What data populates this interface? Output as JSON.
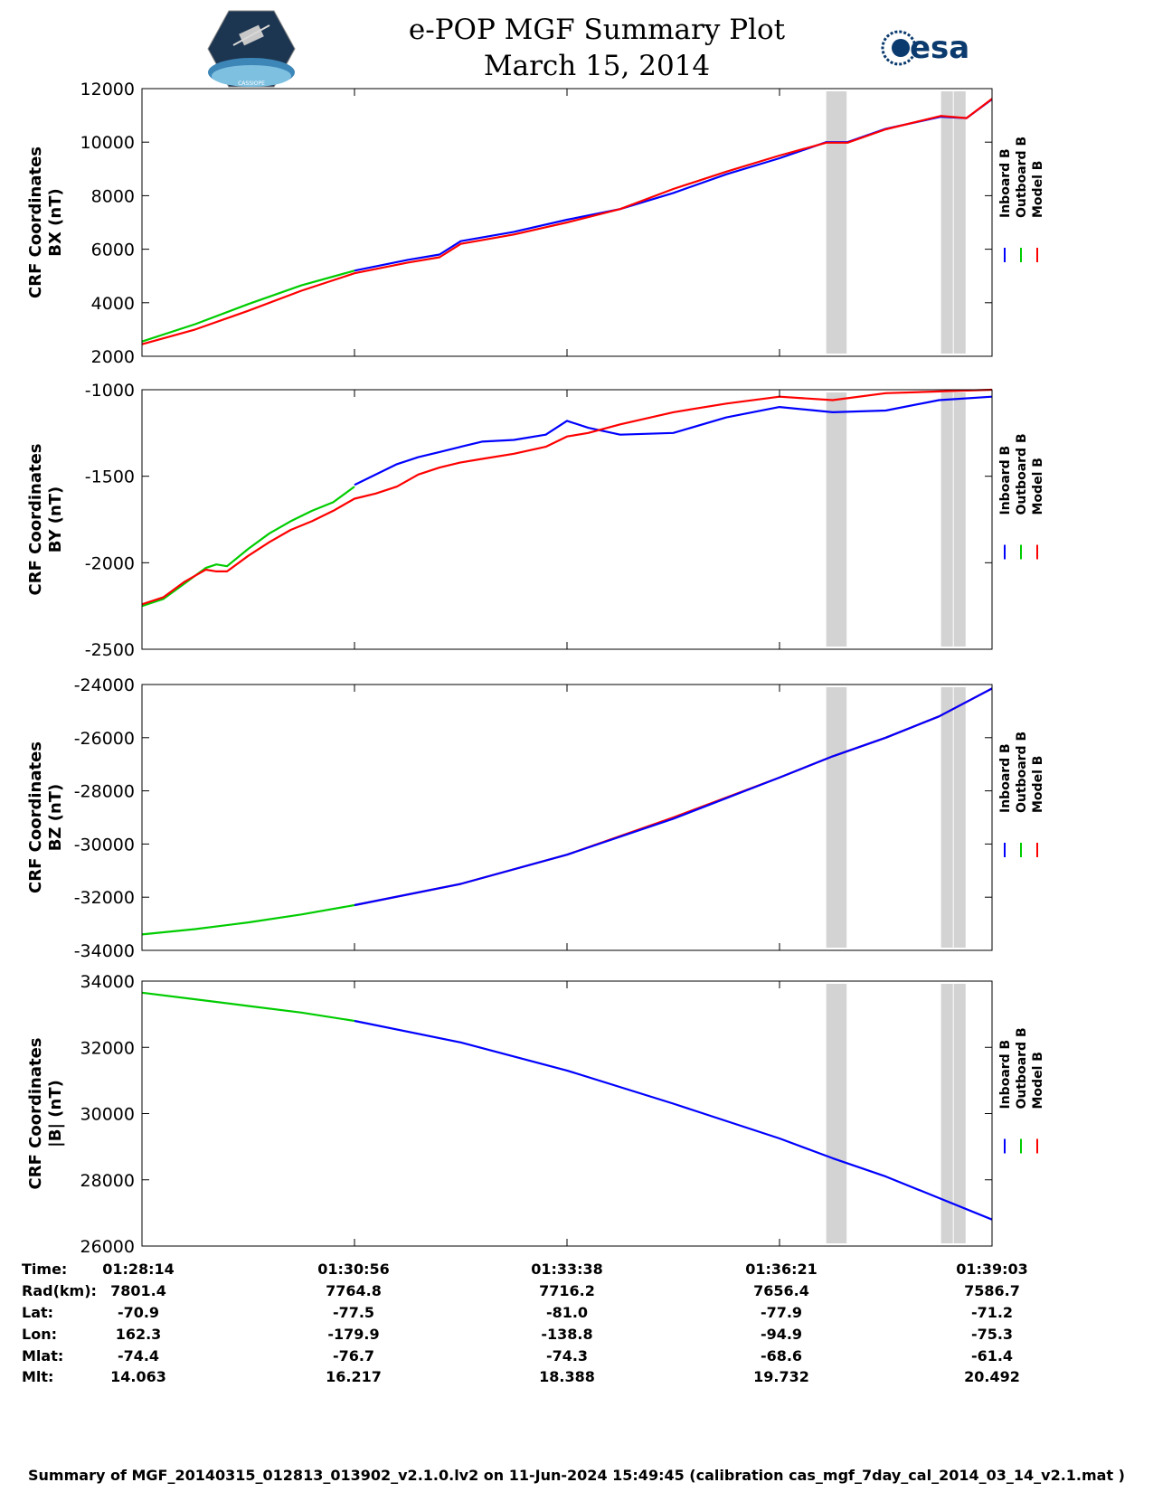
{
  "title": {
    "line1": "e-POP MGF Summary Plot",
    "line2": "March 15, 2014"
  },
  "logos": {
    "left_text": "CASSIOPE",
    "right_text": "esa"
  },
  "legend": {
    "labels": [
      "Inboard B",
      "Outboard B",
      "Model B"
    ],
    "colors": [
      "#0000ff",
      "#00cc00",
      "#ff0000"
    ]
  },
  "chart_data": [
    {
      "type": "line",
      "ylabel_line1": "CRF Coordinates",
      "ylabel_line2": "BX (nT)",
      "ylim": [
        2000,
        12000
      ],
      "yticks": [
        2000,
        4000,
        6000,
        8000,
        10000,
        12000
      ],
      "xlim": [
        0,
        4
      ],
      "xticks": [
        0,
        1,
        2,
        3,
        4
      ],
      "shaded_intervals": [
        [
          3.22,
          3.32
        ],
        [
          3.76,
          3.82
        ],
        [
          3.82,
          3.88
        ]
      ],
      "series": [
        {
          "name": "Outboard B",
          "color": "#00cc00",
          "x": [
            0,
            0.25,
            0.5,
            0.75,
            1.0
          ],
          "y": [
            2550,
            3200,
            3950,
            4650,
            5200
          ]
        },
        {
          "name": "Inboard B",
          "color": "#0000ff",
          "x": [
            1.0,
            1.25,
            1.4,
            1.5,
            1.75,
            2.0,
            2.25,
            2.5,
            2.75,
            3.0,
            3.22,
            3.32,
            3.5,
            3.76,
            3.88,
            4.0
          ],
          "y": [
            5200,
            5600,
            5800,
            6300,
            6650,
            7100,
            7500,
            8100,
            8800,
            9400,
            10000,
            10000,
            10500,
            10950,
            10900,
            11600
          ]
        },
        {
          "name": "Model B",
          "color": "#ff0000",
          "x": [
            0,
            0.25,
            0.5,
            0.75,
            1.0,
            1.25,
            1.4,
            1.5,
            1.75,
            2.0,
            2.25,
            2.5,
            2.75,
            3.0,
            3.22,
            3.32,
            3.5,
            3.76,
            3.88,
            4.0
          ],
          "y": [
            2450,
            3000,
            3700,
            4450,
            5100,
            5500,
            5700,
            6200,
            6550,
            7000,
            7500,
            8250,
            8900,
            9500,
            9980,
            9980,
            10480,
            10980,
            10900,
            11620
          ]
        }
      ]
    },
    {
      "type": "line",
      "ylabel_line1": "CRF Coordinates",
      "ylabel_line2": "BY (nT)",
      "ylim": [
        -2500,
        -1000
      ],
      "yticks": [
        -2500,
        -2000,
        -1500,
        -1000
      ],
      "xlim": [
        0,
        4
      ],
      "xticks": [
        0,
        1,
        2,
        3,
        4
      ],
      "shaded_intervals": [
        [
          3.22,
          3.32
        ],
        [
          3.76,
          3.82
        ],
        [
          3.82,
          3.88
        ]
      ],
      "series": [
        {
          "name": "Outboard B",
          "color": "#00cc00",
          "x": [
            0,
            0.1,
            0.2,
            0.3,
            0.35,
            0.4,
            0.5,
            0.6,
            0.7,
            0.8,
            0.9,
            1.0
          ],
          "y": [
            -2250,
            -2210,
            -2120,
            -2030,
            -2010,
            -2020,
            -1920,
            -1830,
            -1760,
            -1700,
            -1650,
            -1560
          ]
        },
        {
          "name": "Inboard B",
          "color": "#0000ff",
          "x": [
            1.0,
            1.1,
            1.2,
            1.3,
            1.4,
            1.5,
            1.6,
            1.75,
            1.9,
            2.0,
            2.1,
            2.25,
            2.5,
            2.75,
            3.0,
            3.25,
            3.5,
            3.75,
            4.0
          ],
          "y": [
            -1550,
            -1490,
            -1430,
            -1390,
            -1360,
            -1330,
            -1300,
            -1290,
            -1260,
            -1180,
            -1220,
            -1260,
            -1250,
            -1160,
            -1100,
            -1130,
            -1120,
            -1060,
            -1040
          ]
        },
        {
          "name": "Model B",
          "color": "#ff0000",
          "x": [
            0,
            0.1,
            0.2,
            0.3,
            0.35,
            0.4,
            0.5,
            0.6,
            0.7,
            0.8,
            0.9,
            1.0,
            1.1,
            1.2,
            1.3,
            1.4,
            1.5,
            1.6,
            1.75,
            1.9,
            2.0,
            2.1,
            2.25,
            2.5,
            2.75,
            3.0,
            3.25,
            3.5,
            3.75,
            4.0
          ],
          "y": [
            -2240,
            -2200,
            -2110,
            -2040,
            -2050,
            -2050,
            -1960,
            -1880,
            -1810,
            -1760,
            -1700,
            -1630,
            -1600,
            -1560,
            -1490,
            -1450,
            -1420,
            -1400,
            -1370,
            -1330,
            -1270,
            -1250,
            -1200,
            -1130,
            -1080,
            -1040,
            -1060,
            -1020,
            -1010,
            -1000
          ]
        }
      ]
    },
    {
      "type": "line",
      "ylabel_line1": "CRF Coordinates",
      "ylabel_line2": "BZ (nT)",
      "ylim": [
        -34000,
        -24000
      ],
      "yticks": [
        -34000,
        -32000,
        -30000,
        -28000,
        -26000,
        -24000
      ],
      "xlim": [
        0,
        4
      ],
      "xticks": [
        0,
        1,
        2,
        3,
        4
      ],
      "shaded_intervals": [
        [
          3.22,
          3.32
        ],
        [
          3.76,
          3.82
        ],
        [
          3.82,
          3.88
        ]
      ],
      "series": [
        {
          "name": "Outboard B",
          "color": "#00cc00",
          "x": [
            0,
            0.25,
            0.5,
            0.75,
            1.0
          ],
          "y": [
            -33400,
            -33200,
            -32950,
            -32650,
            -32300
          ]
        },
        {
          "name": "Model B",
          "color": "#ff0000",
          "x": [
            1.0,
            1.5,
            2.0,
            2.5,
            3.0,
            3.25,
            3.5,
            3.75,
            4.0
          ],
          "y": [
            -32300,
            -31500,
            -30400,
            -29000,
            -27500,
            -26700,
            -26000,
            -25200,
            -24150
          ]
        },
        {
          "name": "Inboard B",
          "color": "#0000ff",
          "x": [
            1.0,
            1.5,
            2.0,
            2.5,
            3.0,
            3.25,
            3.5,
            3.75,
            4.0
          ],
          "y": [
            -32300,
            -31500,
            -30400,
            -29050,
            -27500,
            -26700,
            -26000,
            -25200,
            -24150
          ]
        }
      ]
    },
    {
      "type": "line",
      "ylabel_line1": "CRF Coordinates",
      "ylabel_line2": "|B| (nT)",
      "ylim": [
        26000,
        34000
      ],
      "yticks": [
        26000,
        28000,
        30000,
        32000,
        34000
      ],
      "xlim": [
        0,
        4
      ],
      "xticks": [
        0,
        1,
        2,
        3,
        4
      ],
      "shaded_intervals": [
        [
          3.22,
          3.32
        ],
        [
          3.76,
          3.82
        ],
        [
          3.82,
          3.88
        ]
      ],
      "series": [
        {
          "name": "Outboard B",
          "color": "#00cc00",
          "x": [
            0,
            0.25,
            0.5,
            0.75,
            1.0
          ],
          "y": [
            33650,
            33450,
            33250,
            33050,
            32800
          ]
        },
        {
          "name": "Inboard B",
          "color": "#0000ff",
          "x": [
            1.0,
            1.5,
            2.0,
            2.5,
            3.0,
            3.25,
            3.5,
            3.75,
            4.0
          ],
          "y": [
            32800,
            32150,
            31300,
            30300,
            29250,
            28650,
            28100,
            27450,
            26800
          ]
        }
      ]
    }
  ],
  "ephemeris": {
    "labels": [
      "Time:",
      "Rad(km):",
      "Lat:",
      "Lon:",
      "Mlat:",
      "Mlt:"
    ],
    "columns": [
      [
        "01:28:14",
        "7801.4",
        "-70.9",
        "162.3",
        "-74.4",
        "14.063"
      ],
      [
        "01:30:56",
        "7764.8",
        "-77.5",
        "-179.9",
        "-76.7",
        "16.217"
      ],
      [
        "01:33:38",
        "7716.2",
        "-81.0",
        "-138.8",
        "-74.3",
        "18.388"
      ],
      [
        "01:36:21",
        "7656.4",
        "-77.9",
        "-94.9",
        "-68.6",
        "19.732"
      ],
      [
        "01:39:03",
        "7586.7",
        "-71.2",
        "-75.3",
        "-61.4",
        "20.492"
      ]
    ]
  },
  "footer": "Summary of MGF_20140315_012813_013902_v2.1.0.lv2 on 11-Jun-2024 15:49:45 (calibration cas_mgf_7day_cal_2014_03_14_v2.1.mat )"
}
